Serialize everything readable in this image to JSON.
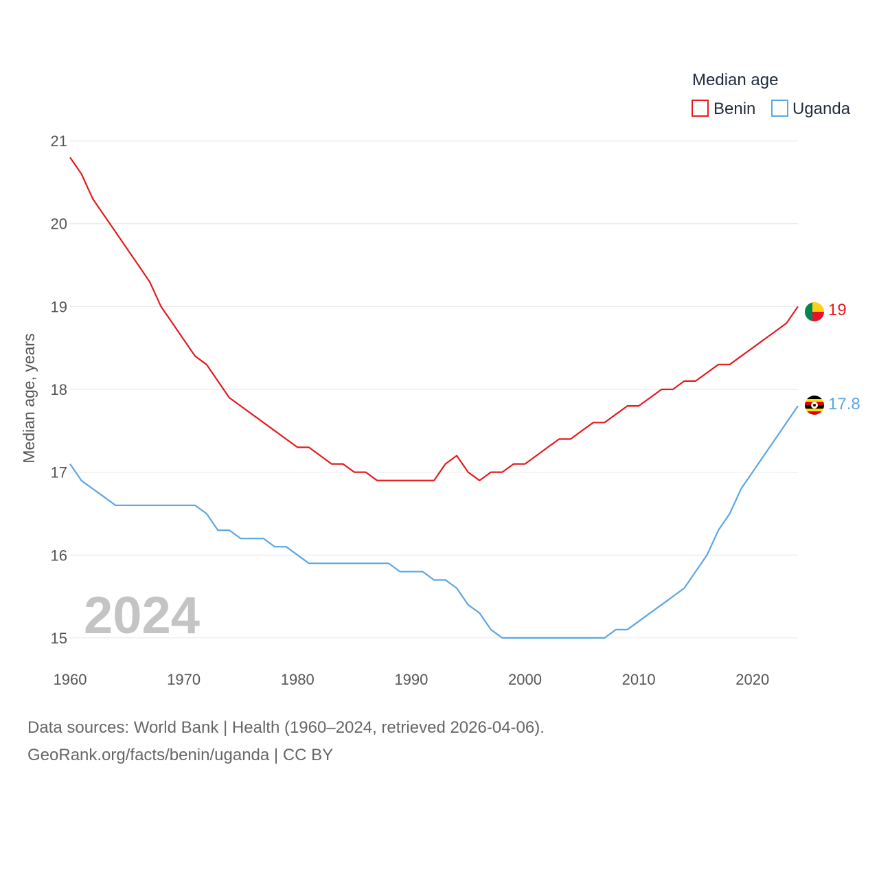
{
  "chart_data": {
    "type": "line",
    "legend_title": "Median age",
    "ylabel": "Median age, years",
    "year_label": "2024",
    "x_ticks": [
      1960,
      1970,
      1980,
      1990,
      2000,
      2010,
      2020
    ],
    "y_ticks": [
      15,
      16,
      17,
      18,
      19,
      20,
      21
    ],
    "xlim": [
      1960,
      2024
    ],
    "ylim": [
      14.85,
      21.15
    ],
    "series": [
      {
        "name": "Benin",
        "color": "#e41a1c",
        "end_label": "19",
        "flag": "benin-flag",
        "points": [
          [
            1960,
            20.8
          ],
          [
            1961,
            20.6
          ],
          [
            1962,
            20.3
          ],
          [
            1963,
            20.1
          ],
          [
            1964,
            19.9
          ],
          [
            1965,
            19.7
          ],
          [
            1966,
            19.5
          ],
          [
            1967,
            19.3
          ],
          [
            1968,
            19.0
          ],
          [
            1969,
            18.8
          ],
          [
            1970,
            18.6
          ],
          [
            1971,
            18.4
          ],
          [
            1972,
            18.3
          ],
          [
            1973,
            18.1
          ],
          [
            1974,
            17.9
          ],
          [
            1975,
            17.8
          ],
          [
            1976,
            17.7
          ],
          [
            1977,
            17.6
          ],
          [
            1978,
            17.5
          ],
          [
            1979,
            17.4
          ],
          [
            1980,
            17.3
          ],
          [
            1981,
            17.3
          ],
          [
            1982,
            17.2
          ],
          [
            1983,
            17.1
          ],
          [
            1984,
            17.1
          ],
          [
            1985,
            17.0
          ],
          [
            1986,
            17.0
          ],
          [
            1987,
            16.9
          ],
          [
            1988,
            16.9
          ],
          [
            1989,
            16.9
          ],
          [
            1990,
            16.9
          ],
          [
            1991,
            16.9
          ],
          [
            1992,
            16.9
          ],
          [
            1993,
            17.1
          ],
          [
            1994,
            17.2
          ],
          [
            1995,
            17.0
          ],
          [
            1996,
            16.9
          ],
          [
            1997,
            17.0
          ],
          [
            1998,
            17.0
          ],
          [
            1999,
            17.1
          ],
          [
            2000,
            17.1
          ],
          [
            2001,
            17.2
          ],
          [
            2002,
            17.3
          ],
          [
            2003,
            17.4
          ],
          [
            2004,
            17.4
          ],
          [
            2005,
            17.5
          ],
          [
            2006,
            17.6
          ],
          [
            2007,
            17.6
          ],
          [
            2008,
            17.7
          ],
          [
            2009,
            17.8
          ],
          [
            2010,
            17.8
          ],
          [
            2011,
            17.9
          ],
          [
            2012,
            18.0
          ],
          [
            2013,
            18.0
          ],
          [
            2014,
            18.1
          ],
          [
            2015,
            18.1
          ],
          [
            2016,
            18.2
          ],
          [
            2017,
            18.3
          ],
          [
            2018,
            18.3
          ],
          [
            2019,
            18.4
          ],
          [
            2020,
            18.5
          ],
          [
            2021,
            18.6
          ],
          [
            2022,
            18.7
          ],
          [
            2023,
            18.8
          ],
          [
            2024,
            19.0
          ]
        ]
      },
      {
        "name": "Uganda",
        "color": "#5aa6e6",
        "end_label": "17.8",
        "flag": "uganda-flag",
        "points": [
          [
            1960,
            17.1
          ],
          [
            1961,
            16.9
          ],
          [
            1962,
            16.8
          ],
          [
            1963,
            16.7
          ],
          [
            1964,
            16.6
          ],
          [
            1965,
            16.6
          ],
          [
            1966,
            16.6
          ],
          [
            1967,
            16.6
          ],
          [
            1968,
            16.6
          ],
          [
            1969,
            16.6
          ],
          [
            1970,
            16.6
          ],
          [
            1971,
            16.6
          ],
          [
            1972,
            16.5
          ],
          [
            1973,
            16.3
          ],
          [
            1974,
            16.3
          ],
          [
            1975,
            16.2
          ],
          [
            1976,
            16.2
          ],
          [
            1977,
            16.2
          ],
          [
            1978,
            16.1
          ],
          [
            1979,
            16.1
          ],
          [
            1980,
            16.0
          ],
          [
            1981,
            15.9
          ],
          [
            1982,
            15.9
          ],
          [
            1983,
            15.9
          ],
          [
            1984,
            15.9
          ],
          [
            1985,
            15.9
          ],
          [
            1986,
            15.9
          ],
          [
            1987,
            15.9
          ],
          [
            1988,
            15.9
          ],
          [
            1989,
            15.8
          ],
          [
            1990,
            15.8
          ],
          [
            1991,
            15.8
          ],
          [
            1992,
            15.7
          ],
          [
            1993,
            15.7
          ],
          [
            1994,
            15.6
          ],
          [
            1995,
            15.4
          ],
          [
            1996,
            15.3
          ],
          [
            1997,
            15.1
          ],
          [
            1998,
            15.0
          ],
          [
            1999,
            15.0
          ],
          [
            2000,
            15.0
          ],
          [
            2001,
            15.0
          ],
          [
            2002,
            15.0
          ],
          [
            2003,
            15.0
          ],
          [
            2004,
            15.0
          ],
          [
            2005,
            15.0
          ],
          [
            2006,
            15.0
          ],
          [
            2007,
            15.0
          ],
          [
            2008,
            15.1
          ],
          [
            2009,
            15.1
          ],
          [
            2010,
            15.2
          ],
          [
            2011,
            15.3
          ],
          [
            2012,
            15.4
          ],
          [
            2013,
            15.5
          ],
          [
            2014,
            15.6
          ],
          [
            2015,
            15.8
          ],
          [
            2016,
            16.0
          ],
          [
            2017,
            16.3
          ],
          [
            2018,
            16.5
          ],
          [
            2019,
            16.8
          ],
          [
            2020,
            17.0
          ],
          [
            2021,
            17.2
          ],
          [
            2022,
            17.4
          ],
          [
            2023,
            17.6
          ],
          [
            2024,
            17.8
          ]
        ]
      }
    ]
  },
  "footer": {
    "line1": "Data sources: World Bank | Health (1960–2024, retrieved 2026-04-06).",
    "line2": "GeoRank.org/facts/benin/uganda | CC BY"
  }
}
